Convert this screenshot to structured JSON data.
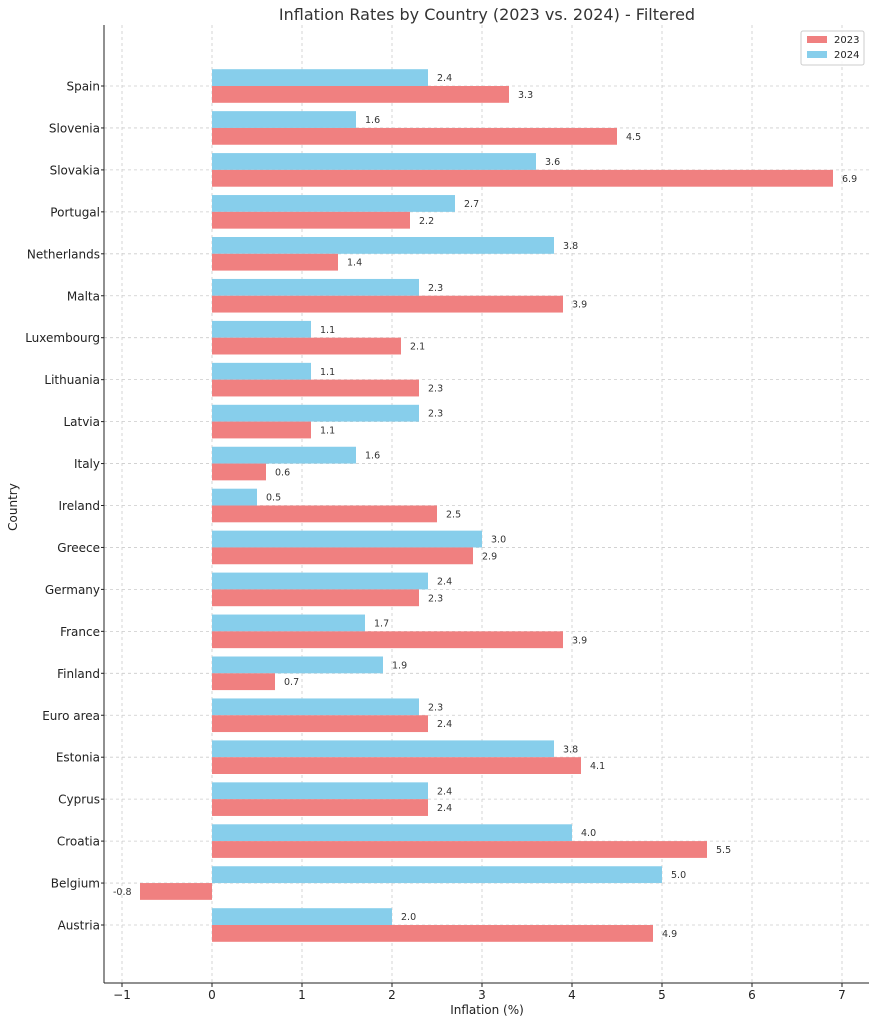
{
  "chart_data": {
    "type": "bar",
    "orientation": "horizontal",
    "title": "Inflation Rates by Country (2023 vs. 2024) - Filtered",
    "xlabel": "Inflation (%)",
    "ylabel": "Country",
    "xlim": [
      -1.2,
      7.3
    ],
    "xticks": [
      -1,
      0,
      1,
      2,
      3,
      4,
      5,
      6,
      7
    ],
    "xtick_labels": [
      "−1",
      "0",
      "1",
      "2",
      "3",
      "4",
      "5",
      "6",
      "7"
    ],
    "grid": true,
    "legend_position": "top-right",
    "categories": [
      "Spain",
      "Slovenia",
      "Slovakia",
      "Portugal",
      "Netherlands",
      "Malta",
      "Luxembourg",
      "Lithuania",
      "Latvia",
      "Italy",
      "Ireland",
      "Greece",
      "Germany",
      "France",
      "Finland",
      "Euro area",
      "Estonia",
      "Cyprus",
      "Croatia",
      "Belgium",
      "Austria"
    ],
    "series": [
      {
        "name": "2023",
        "color": "#f08080",
        "values": [
          3.3,
          4.5,
          6.9,
          2.2,
          1.4,
          3.9,
          2.1,
          2.3,
          1.1,
          0.6,
          2.5,
          2.9,
          2.3,
          3.9,
          0.7,
          2.4,
          4.1,
          2.4,
          5.5,
          -0.8,
          4.9
        ],
        "labels": [
          "3.3",
          "4.5",
          "6.9",
          "2.2",
          "1.4",
          "3.9",
          "2.1",
          "2.3",
          "1.1",
          "0.6",
          "2.5",
          "2.9",
          "2.3",
          "3.9",
          "0.7",
          "2.4",
          "4.1",
          "2.4",
          "5.5",
          "-0.8",
          "4.9"
        ]
      },
      {
        "name": "2024",
        "color": "#87ceeb",
        "values": [
          2.4,
          1.6,
          3.6,
          2.7,
          3.8,
          2.3,
          1.1,
          1.1,
          2.3,
          1.6,
          0.5,
          3.0,
          2.4,
          1.7,
          1.9,
          2.3,
          3.8,
          2.4,
          4.0,
          5.0,
          2.0
        ],
        "labels": [
          "2.4",
          "1.6",
          "3.6",
          "2.7",
          "3.8",
          "2.3",
          "1.1",
          "1.1",
          "2.3",
          "1.6",
          "0.5",
          "3.0",
          "2.4",
          "1.7",
          "1.9",
          "2.3",
          "3.8",
          "2.4",
          "4.0",
          "5.0",
          "2.0"
        ]
      }
    ]
  }
}
